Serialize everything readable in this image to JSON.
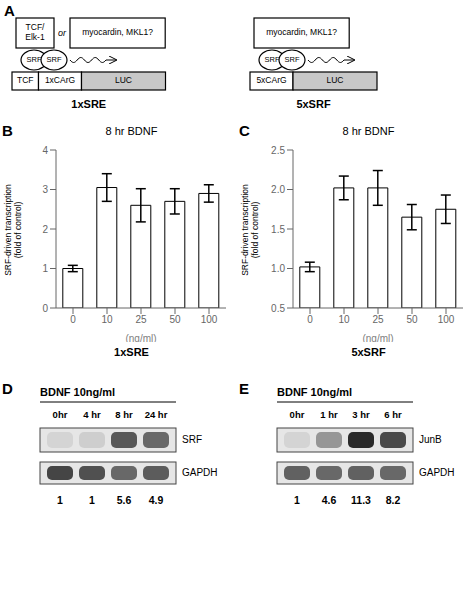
{
  "chart_data": [
    {
      "type": "diagram",
      "panel": "A",
      "constructs": [
        {
          "activators": [
            "TCF/\nElk-1",
            "myocardin, MKL1?"
          ],
          "connector": "or",
          "factors": [
            "SRF",
            "SRF"
          ],
          "elements": [
            "TCF",
            "1xCArG",
            "LUC"
          ],
          "label": "1xSRE"
        },
        {
          "activators": [
            "myocardin, MKL1?"
          ],
          "factors": [
            "SRF",
            "SRF"
          ],
          "elements": [
            "5xCArG",
            "LUC"
          ],
          "label": "5xSRF"
        }
      ]
    },
    {
      "type": "bar",
      "panel": "B",
      "title": "8 hr BDNF",
      "subtitle": "1xSRE",
      "xlabel": "(ng/ml)",
      "ylabel": "SRF-driven transcription\n(fold of control)",
      "categories": [
        "0",
        "10",
        "25",
        "50",
        "100"
      ],
      "values": [
        1.0,
        3.05,
        2.6,
        2.7,
        2.9
      ],
      "errors": [
        0.08,
        0.35,
        0.42,
        0.32,
        0.22
      ],
      "color": "#ffffff",
      "ylim": [
        0,
        4
      ],
      "yticks": [
        0,
        1,
        2,
        3,
        4
      ]
    },
    {
      "type": "bar",
      "panel": "C",
      "title": "8 hr BDNF",
      "subtitle": "5xSRF",
      "xlabel": "(ng/ml)",
      "ylabel": "SRF-driven transcription\n(fold of control)",
      "categories": [
        "0",
        "10",
        "25",
        "50",
        "100"
      ],
      "values": [
        1.02,
        2.02,
        2.02,
        1.65,
        1.75
      ],
      "errors": [
        0.06,
        0.15,
        0.22,
        0.16,
        0.18
      ],
      "color": "#ffffff",
      "ylim": [
        0.5,
        2.5
      ],
      "yticks": [
        0.5,
        {
          "value": 1.0,
          "label": "1.0"
        },
        1.5,
        {
          "value": 2.0,
          "label": "2.0"
        },
        2.5
      ]
    },
    {
      "type": "blot",
      "panel": "D",
      "title": "BDNF 10ng/ml",
      "categories": [
        "0hr",
        "4 hr",
        "8 hr",
        "24 hr"
      ],
      "series": [
        {
          "name": "SRF",
          "values": [
            0.08,
            0.1,
            0.62,
            0.55
          ]
        },
        {
          "name": "GAPDH",
          "values": [
            0.7,
            0.65,
            0.55,
            0.6
          ]
        }
      ],
      "annotations": [
        "1",
        "1",
        "5.6",
        "4.9"
      ]
    },
    {
      "type": "blot",
      "panel": "E",
      "title": "BDNF 10ng/ml",
      "categories": [
        "0hr",
        "1 hr",
        "3 hr",
        "6 hr"
      ],
      "series": [
        {
          "name": "JunB",
          "values": [
            0.08,
            0.35,
            0.82,
            0.68
          ]
        },
        {
          "name": "GAPDH",
          "values": [
            0.58,
            0.55,
            0.58,
            0.55
          ]
        }
      ],
      "annotations": [
        "1",
        "4.6",
        "11.3",
        "8.2"
      ]
    }
  ]
}
